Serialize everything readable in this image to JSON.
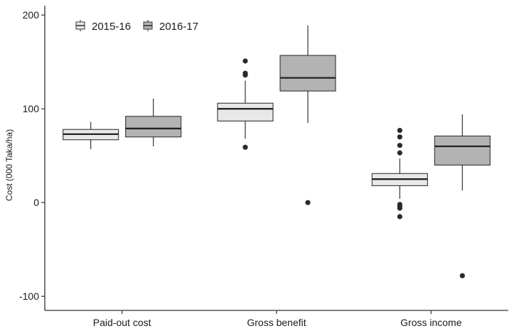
{
  "chart_data": {
    "type": "box",
    "ylabel": "Cost (000 Taka/ha)",
    "xlabel": "",
    "ylim": [
      -115,
      210
    ],
    "yticks": [
      -100,
      0,
      100,
      200
    ],
    "categories": [
      "Paid-out cost",
      "Gross benefit",
      "Gross income"
    ],
    "legend_position": "top-left",
    "grid": false,
    "series": [
      {
        "name": "2015-16",
        "color": "#e8e8e8",
        "boxes": [
          {
            "category": "Paid-out cost",
            "whisker_low": 57,
            "q1": 67,
            "median": 73,
            "q3": 78,
            "whisker_high": 86,
            "outliers": []
          },
          {
            "category": "Gross benefit",
            "whisker_low": 68,
            "q1": 87,
            "median": 100,
            "q3": 106,
            "whisker_high": 130,
            "outliers": [
              59,
              136,
              138,
              151
            ]
          },
          {
            "category": "Gross income",
            "whisker_low": 4,
            "q1": 18,
            "median": 25,
            "q3": 31,
            "whisker_high": 47,
            "outliers": [
              -15,
              -6,
              -4,
              -2,
              53,
              61,
              70,
              77
            ]
          }
        ]
      },
      {
        "name": "2016-17",
        "color": "#b3b3b3",
        "boxes": [
          {
            "category": "Paid-out cost",
            "whisker_low": 60,
            "q1": 70,
            "median": 79,
            "q3": 92,
            "whisker_high": 111,
            "outliers": []
          },
          {
            "category": "Gross benefit",
            "whisker_low": 85,
            "q1": 119,
            "median": 133,
            "q3": 157,
            "whisker_high": 189,
            "outliers": [
              0
            ]
          },
          {
            "category": "Gross income",
            "whisker_low": 13,
            "q1": 40,
            "median": 60,
            "q3": 71,
            "whisker_high": 94,
            "outliers": [
              -78
            ]
          }
        ]
      }
    ]
  }
}
